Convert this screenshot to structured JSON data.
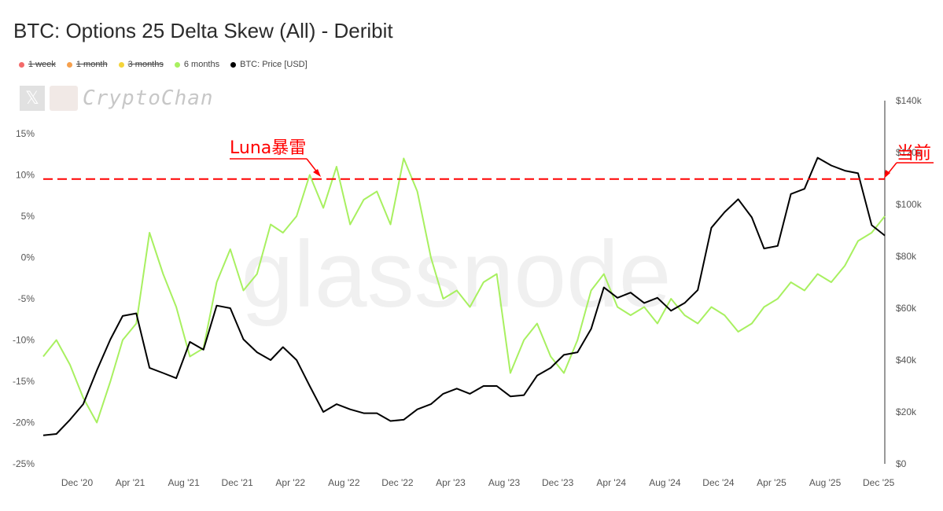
{
  "header": {
    "title": "BTC: Options 25 Delta Skew (All) - Deribit"
  },
  "legend": [
    {
      "label": "1 week",
      "color": "#f36a6a",
      "enabled": false
    },
    {
      "label": "1 month",
      "color": "#f6a04d",
      "enabled": false
    },
    {
      "label": "3 months",
      "color": "#f4d43a",
      "enabled": false
    },
    {
      "label": "6 months",
      "color": "#a8f060",
      "enabled": true
    },
    {
      "label": "BTC: Price [USD]",
      "color": "#000000",
      "enabled": true
    }
  ],
  "watermark": {
    "name": "CryptoChan",
    "icon": "x-logo-icon"
  },
  "annotations": {
    "luna": "Luna暴雷",
    "current": "当前",
    "color": "#ff0000"
  },
  "chart_data": {
    "type": "line",
    "title": "BTC: Options 25 Delta Skew (All) - Deribit",
    "x_ticks": [
      "Dec '20",
      "Apr '21",
      "Aug '21",
      "Dec '21",
      "Apr '22",
      "Aug '22",
      "Dec '22",
      "Apr '23",
      "Aug '23",
      "Dec '23",
      "Apr '24",
      "Aug '24",
      "Dec '24",
      "Apr '25",
      "Aug '25",
      "Dec '25"
    ],
    "xlim": [
      "2020-09-15",
      "2025-12-15"
    ],
    "y_left": {
      "ticks": [
        "15%",
        "10%",
        "5%",
        "0%",
        "-5%",
        "-10%",
        "-15%",
        "-20%",
        "-25%"
      ],
      "ylim": [
        -25,
        15
      ]
    },
    "y_right": {
      "ticks": [
        "$140k",
        "$120k",
        "$100k",
        "$80k",
        "$60k",
        "$40k",
        "$20k",
        "$0"
      ],
      "ylim": [
        0,
        140000
      ]
    },
    "reference_line": {
      "value": 9.5,
      "axis": "left",
      "style": "dashed",
      "color": "#ff0000"
    },
    "series": [
      {
        "name": "6 months",
        "axis": "left",
        "color": "#a8f060",
        "x": [
          "2020-09-15",
          "2020-10-15",
          "2020-11-15",
          "2020-12-15",
          "2021-01-15",
          "2021-02-15",
          "2021-03-15",
          "2021-04-15",
          "2021-05-15",
          "2021-06-15",
          "2021-07-15",
          "2021-08-15",
          "2021-09-15",
          "2021-10-15",
          "2021-11-15",
          "2021-12-15",
          "2022-01-15",
          "2022-02-15",
          "2022-03-15",
          "2022-04-15",
          "2022-05-15",
          "2022-06-15",
          "2022-07-15",
          "2022-08-15",
          "2022-09-15",
          "2022-10-15",
          "2022-11-15",
          "2022-12-15",
          "2023-01-15",
          "2023-02-15",
          "2023-03-15",
          "2023-04-15",
          "2023-05-15",
          "2023-06-15",
          "2023-07-15",
          "2023-08-15",
          "2023-09-15",
          "2023-10-15",
          "2023-11-15",
          "2023-12-15",
          "2024-01-15",
          "2024-02-15",
          "2024-03-15",
          "2024-04-15",
          "2024-05-15",
          "2024-06-15",
          "2024-07-15",
          "2024-08-15",
          "2024-09-15",
          "2024-10-15",
          "2024-11-15",
          "2024-12-15",
          "2025-01-15",
          "2025-02-15",
          "2025-03-15",
          "2025-04-15",
          "2025-05-15",
          "2025-06-15",
          "2025-07-15",
          "2025-08-15",
          "2025-09-15",
          "2025-10-15",
          "2025-11-15",
          "2025-12-15"
        ],
        "values": [
          -12,
          -10,
          -13,
          -17,
          -20,
          -15,
          -10,
          -8,
          3,
          -2,
          -6,
          -12,
          -11,
          -3,
          1,
          -4,
          -2,
          4,
          3,
          5,
          10,
          6,
          11,
          4,
          7,
          8,
          4,
          12,
          8,
          0,
          -5,
          -4,
          -6,
          -3,
          -2,
          -14,
          -10,
          -8,
          -12,
          -14,
          -10,
          -4,
          -2,
          -6,
          -7,
          -6,
          -8,
          -5,
          -7,
          -8,
          -6,
          -7,
          -9,
          -8,
          -6,
          -5,
          -3,
          -4,
          -2,
          -3,
          -1,
          2,
          3,
          5
        ]
      },
      {
        "name": "BTC: Price [USD]",
        "axis": "right",
        "color": "#000000",
        "x": [
          "2020-09-15",
          "2020-10-15",
          "2020-11-15",
          "2020-12-15",
          "2021-01-15",
          "2021-02-15",
          "2021-03-15",
          "2021-04-15",
          "2021-05-15",
          "2021-06-15",
          "2021-07-15",
          "2021-08-15",
          "2021-09-15",
          "2021-10-15",
          "2021-11-15",
          "2021-12-15",
          "2022-01-15",
          "2022-02-15",
          "2022-03-15",
          "2022-04-15",
          "2022-05-15",
          "2022-06-15",
          "2022-07-15",
          "2022-08-15",
          "2022-09-15",
          "2022-10-15",
          "2022-11-15",
          "2022-12-15",
          "2023-01-15",
          "2023-02-15",
          "2023-03-15",
          "2023-04-15",
          "2023-05-15",
          "2023-06-15",
          "2023-07-15",
          "2023-08-15",
          "2023-09-15",
          "2023-10-15",
          "2023-11-15",
          "2023-12-15",
          "2024-01-15",
          "2024-02-15",
          "2024-03-15",
          "2024-04-15",
          "2024-05-15",
          "2024-06-15",
          "2024-07-15",
          "2024-08-15",
          "2024-09-15",
          "2024-10-15",
          "2024-11-15",
          "2024-12-15",
          "2025-01-15",
          "2025-02-15",
          "2025-03-15",
          "2025-04-15",
          "2025-05-15",
          "2025-06-15",
          "2025-07-15",
          "2025-08-15",
          "2025-09-15",
          "2025-10-15",
          "2025-11-15",
          "2025-12-15"
        ],
        "values": [
          11000,
          11500,
          17000,
          23000,
          36000,
          48000,
          57000,
          58000,
          37000,
          35000,
          33000,
          47000,
          44000,
          61000,
          60000,
          48000,
          43000,
          40000,
          45000,
          40000,
          30000,
          20000,
          23000,
          21000,
          19500,
          19500,
          16500,
          17000,
          21000,
          23000,
          27000,
          29000,
          27000,
          30000,
          30000,
          26000,
          26500,
          34000,
          37000,
          42000,
          43000,
          52000,
          68000,
          64000,
          66000,
          62000,
          64000,
          59000,
          62000,
          67000,
          91000,
          97000,
          102000,
          95000,
          83000,
          84000,
          104000,
          106000,
          118000,
          115000,
          113000,
          112000,
          92000,
          88000
        ]
      }
    ]
  }
}
